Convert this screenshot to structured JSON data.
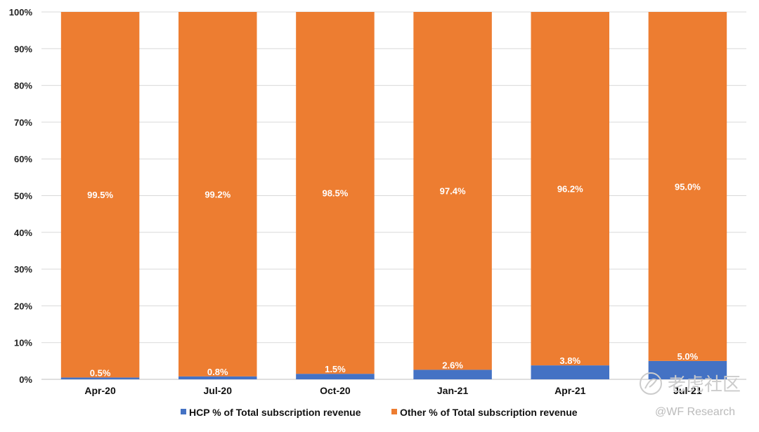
{
  "chart_data": {
    "type": "bar",
    "stacked": true,
    "percent_stacked": true,
    "categories": [
      "Apr-20",
      "Jul-20",
      "Oct-20",
      "Jan-21",
      "Apr-21",
      "Jul-21"
    ],
    "series": [
      {
        "name": "HCP % of Total subscription revenue",
        "values": [
          0.5,
          0.8,
          1.5,
          2.6,
          3.8,
          5.0
        ],
        "labels": [
          "0.5%",
          "0.8%",
          "1.5%",
          "2.6%",
          "3.8%",
          "5.0%"
        ],
        "color": "#4472C4"
      },
      {
        "name": "Other % of Total subscription revenue",
        "values": [
          99.5,
          99.2,
          98.5,
          97.4,
          96.2,
          95.0
        ],
        "labels": [
          "99.5%",
          "99.2%",
          "98.5%",
          "97.4%",
          "96.2%",
          "95.0%"
        ],
        "color": "#ED7D31"
      }
    ],
    "yticks": [
      "0%",
      "10%",
      "20%",
      "30%",
      "40%",
      "50%",
      "60%",
      "70%",
      "80%",
      "90%",
      "100%"
    ],
    "ylim": [
      0,
      100
    ],
    "grid": true,
    "legend_position": "bottom"
  },
  "watermark": {
    "brand": "老虎社区",
    "handle": "@WF Research"
  }
}
